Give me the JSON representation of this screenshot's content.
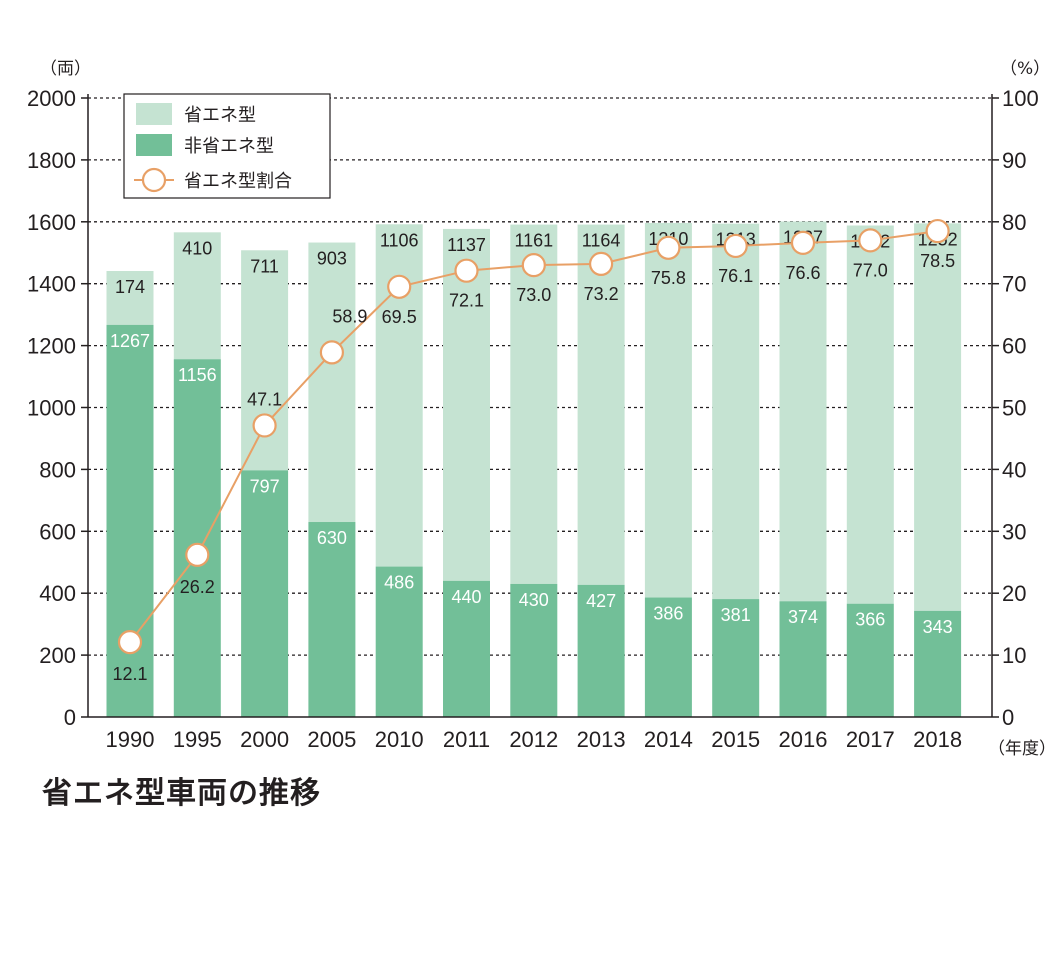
{
  "caption": "省エネ型車両の推移",
  "colors": {
    "energy_saving": "#c5e3d2",
    "non_energy_saving": "#72bf98",
    "ratio_line": "#e8a066",
    "grid": "#231f20",
    "text": "#231f20"
  },
  "chart_data": {
    "type": "bar",
    "stacked": true,
    "title": "省エネ型車両の推移",
    "categories": [
      "1990",
      "1995",
      "2000",
      "2005",
      "2010",
      "2011",
      "2012",
      "2013",
      "2014",
      "2015",
      "2016",
      "2017",
      "2018"
    ],
    "series": [
      {
        "name": "非省エネ型",
        "axis": "left",
        "values": [
          1267,
          1156,
          797,
          630,
          486,
          440,
          430,
          427,
          386,
          381,
          374,
          366,
          343
        ]
      },
      {
        "name": "省エネ型",
        "axis": "left",
        "values": [
          174,
          410,
          711,
          903,
          1106,
          1137,
          1161,
          1164,
          1210,
          1213,
          1227,
          1222,
          1252
        ]
      },
      {
        "name": "省エネ型割合",
        "type": "line",
        "axis": "right",
        "values": [
          12.1,
          26.2,
          47.1,
          58.9,
          69.5,
          72.1,
          73.0,
          73.2,
          75.8,
          76.1,
          76.6,
          77.0,
          78.5
        ]
      }
    ],
    "left_axis": {
      "unit": "（両）",
      "ylim": [
        0,
        2000
      ],
      "ticks": [
        0,
        200,
        400,
        600,
        800,
        1000,
        1200,
        1400,
        1600,
        1800,
        2000
      ]
    },
    "right_axis": {
      "unit": "（%）",
      "ylim": [
        0,
        100
      ],
      "ticks": [
        0,
        10,
        20,
        30,
        40,
        50,
        60,
        70,
        80,
        90,
        100
      ]
    },
    "x_unit": "（年度）",
    "legend": {
      "position": "top-left",
      "entries": [
        "省エネ型",
        "非省エネ型",
        "省エネ型割合"
      ]
    },
    "ratio_labels": [
      "12.1",
      "26.2",
      "47.1",
      "58.9",
      "69.5",
      "72.1",
      "73.0",
      "73.2",
      "75.8",
      "76.1",
      "76.6",
      "77.0",
      "78.5"
    ]
  }
}
